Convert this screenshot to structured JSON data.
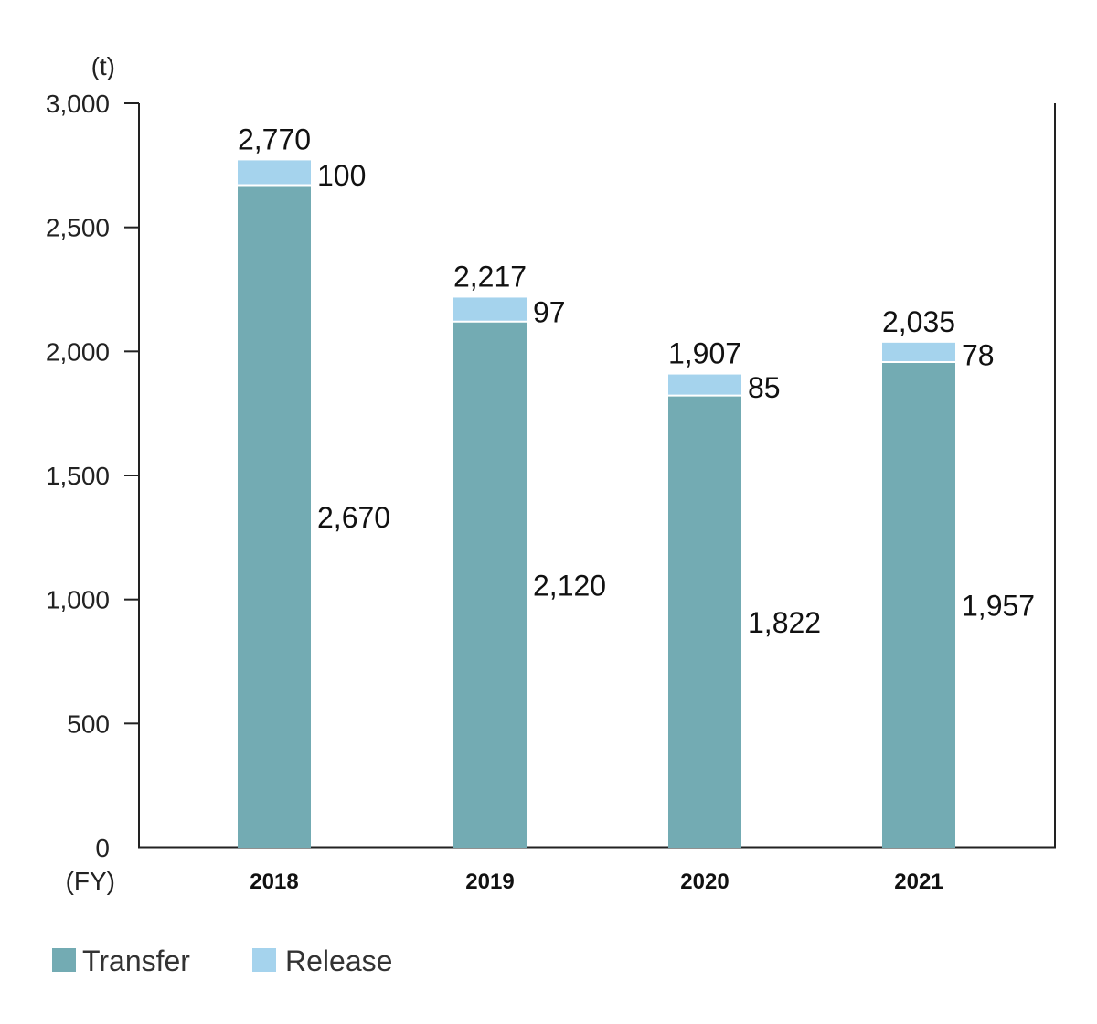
{
  "chart_data": {
    "type": "bar",
    "stacked": true,
    "categories": [
      "2018",
      "2019",
      "2020",
      "2021"
    ],
    "series": [
      {
        "name": "Transfer",
        "values": [
          2670,
          2120,
          1822,
          1957
        ],
        "color": "#73abb3"
      },
      {
        "name": "Release",
        "values": [
          100,
          97,
          85,
          78
        ],
        "color": "#a5d3ed"
      }
    ],
    "totals": [
      2770,
      2217,
      1907,
      2035
    ],
    "value_labels": {
      "transfer": [
        "2,670",
        "2,120",
        "1,822",
        "1,957"
      ],
      "release": [
        "100",
        "97",
        "85",
        "78"
      ],
      "total": [
        "2,770",
        "2,217",
        "1,907",
        "2,035"
      ]
    },
    "y_unit": "(t)",
    "x_unit": "(FY)",
    "ylim": [
      0,
      3000
    ],
    "yticks": [
      0,
      500,
      1000,
      1500,
      2000,
      2500,
      3000
    ],
    "ytick_labels": [
      "0",
      "500",
      "1,000",
      "1,500",
      "2,000",
      "2,500",
      "3,000"
    ],
    "grid": false,
    "legend_position": "bottom-left"
  }
}
